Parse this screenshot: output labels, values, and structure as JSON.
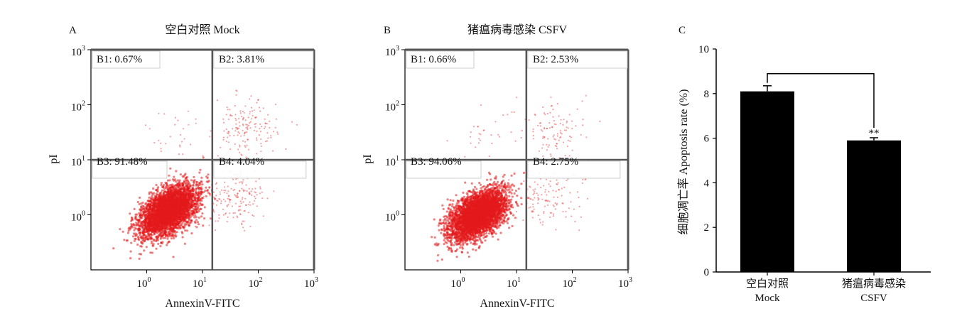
{
  "panels": [
    {
      "letter": "A",
      "title": "空白对照 Mock",
      "xlabel": "AnnexinV-FITC",
      "ylabel": "pI",
      "quadrants": [
        "B1: 0.67%",
        "B2: 3.81%",
        "B3: 91.48%",
        "B4: 4.04%"
      ]
    },
    {
      "letter": "B",
      "title": "猪瘟病毒感染 CSFV",
      "xlabel": "AnnexinV-FITC",
      "ylabel": "pI",
      "quadrants": [
        "B1: 0.66%",
        "B2: 2.53%",
        "B3: 94.06%",
        "B4: 2.75%"
      ]
    },
    {
      "letter": "C"
    }
  ],
  "flow_ticks": {
    "x": [
      {
        "base": "10",
        "exp": "0"
      },
      {
        "base": "10",
        "exp": "1"
      },
      {
        "base": "10",
        "exp": "2"
      },
      {
        "base": "10",
        "exp": "3"
      }
    ],
    "y": [
      {
        "base": "10",
        "exp": "0"
      },
      {
        "base": "10",
        "exp": "1"
      },
      {
        "base": "10",
        "exp": "2"
      },
      {
        "base": "10",
        "exp": "3"
      }
    ]
  },
  "colors": {
    "dots": "#e31a1c",
    "bars": "#000000",
    "axis": "#000000",
    "gate": "#555555"
  },
  "chart_data": [
    {
      "type": "scatter",
      "panel": "A",
      "title": "空白对照 Mock",
      "xlabel": "AnnexinV-FITC",
      "ylabel": "pI",
      "x_scale": "log",
      "y_scale": "log",
      "xlim": [
        0.1,
        1000
      ],
      "ylim": [
        0.1,
        1000
      ],
      "quadrant_gates": {
        "x": 15,
        "y": 10
      },
      "quadrant_percent": {
        "B1": 0.67,
        "B2": 3.81,
        "B3": 91.48,
        "B4": 4.04
      },
      "populations": [
        {
          "quadrant": "B3",
          "center": [
            2.5,
            1.2
          ],
          "fraction": 0.9148
        },
        {
          "quadrant": "B2",
          "center": [
            60,
            35
          ],
          "fraction": 0.0381
        },
        {
          "quadrant": "B4",
          "center": [
            40,
            2
          ],
          "fraction": 0.0404
        },
        {
          "quadrant": "B1",
          "center": [
            3,
            30
          ],
          "fraction": 0.0067
        }
      ]
    },
    {
      "type": "scatter",
      "panel": "B",
      "title": "猪瘟病毒感染 CSFV",
      "xlabel": "AnnexinV-FITC",
      "ylabel": "pI",
      "x_scale": "log",
      "y_scale": "log",
      "xlim": [
        0.1,
        1000
      ],
      "ylim": [
        0.1,
        1000
      ],
      "quadrant_gates": {
        "x": 15,
        "y": 10
      },
      "quadrant_percent": {
        "B1": 0.66,
        "B2": 2.53,
        "B3": 94.06,
        "B4": 2.75
      },
      "populations": [
        {
          "quadrant": "B3",
          "center": [
            2.0,
            1.0
          ],
          "fraction": 0.9406
        },
        {
          "quadrant": "B2",
          "center": [
            50,
            30
          ],
          "fraction": 0.0253
        },
        {
          "quadrant": "B4",
          "center": [
            40,
            2
          ],
          "fraction": 0.0275
        },
        {
          "quadrant": "B1",
          "center": [
            3,
            30
          ],
          "fraction": 0.0066
        }
      ]
    },
    {
      "type": "bar",
      "panel": "C",
      "categories": [
        [
          "空白对照",
          "Mock"
        ],
        [
          "猪瘟病毒感染",
          "CSFV"
        ]
      ],
      "values": [
        8.1,
        5.9
      ],
      "errors": [
        0.25,
        0.12
      ],
      "ylabel": "细胞凋亡率 Apoptosis rate (%)",
      "ylim": [
        0,
        10
      ],
      "yticks": [
        "0",
        "2",
        "4",
        "6",
        "8",
        "10"
      ],
      "significance": {
        "pair": [
          0,
          1
        ],
        "label": "**"
      }
    }
  ]
}
